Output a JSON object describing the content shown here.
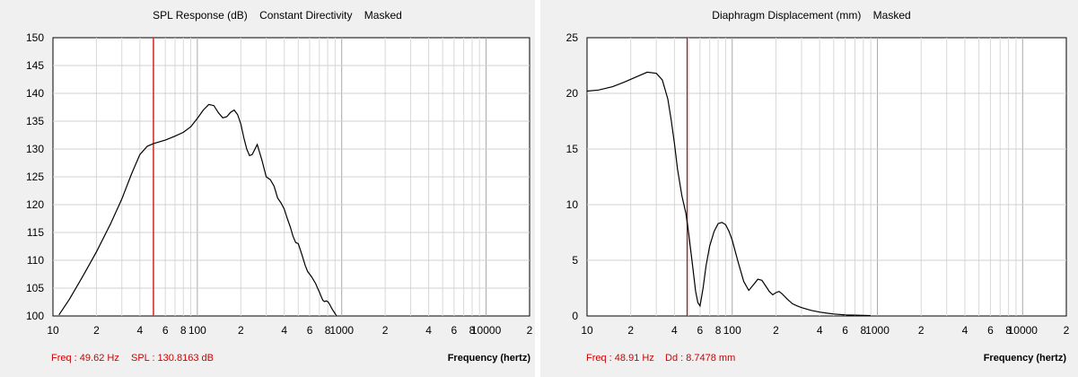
{
  "chart_data": [
    {
      "type": "line",
      "title": "SPL Response (dB)    Constant Directivity    Masked",
      "xlabel": "Frequency (hertz)",
      "ylabel": "",
      "x_scale": "log",
      "xlim": [
        10,
        20000
      ],
      "ylim": [
        100,
        150
      ],
      "x_tick_labels": [
        "10",
        "2",
        "4",
        "6",
        "8",
        "100",
        "2",
        "4",
        "6",
        "8",
        "1000",
        "2",
        "4",
        "6",
        "8",
        "10000",
        "2"
      ],
      "x_tick_values": [
        10,
        20,
        40,
        60,
        80,
        100,
        200,
        400,
        600,
        800,
        1000,
        2000,
        4000,
        6000,
        8000,
        10000,
        20000
      ],
      "y_ticks": [
        100,
        105,
        110,
        115,
        120,
        125,
        130,
        135,
        140,
        145,
        150
      ],
      "grid": true,
      "marker": {
        "x": 49.62,
        "color": "#cc0000"
      },
      "readout": {
        "freq": "Freq : 49.62 Hz",
        "value": "SPL : 130.8163 dB"
      },
      "series": [
        {
          "color": "#000000",
          "x": [
            11,
            13,
            16,
            20,
            25,
            30,
            35,
            40,
            45,
            50,
            60,
            70,
            80,
            90,
            100,
            110,
            120,
            130,
            140,
            150,
            160,
            170,
            180,
            190,
            200,
            210,
            220,
            230,
            240,
            260,
            280,
            300,
            320,
            340,
            360,
            380,
            400,
            420,
            440,
            460,
            480,
            500,
            520,
            540,
            560,
            580,
            600,
            620,
            640,
            660,
            680,
            700,
            720,
            740,
            760,
            780,
            800,
            820,
            840,
            860,
            880,
            900,
            920
          ],
          "values": [
            100.2,
            103,
            107,
            111.5,
            116.5,
            121,
            125.5,
            129,
            130.5,
            131,
            131.6,
            132.3,
            133,
            134,
            135.5,
            137,
            138,
            137.8,
            136.5,
            135.6,
            135.8,
            136.6,
            137,
            136.2,
            134.5,
            132,
            130,
            128.8,
            129,
            130.8,
            128,
            125,
            124.5,
            123.3,
            121.2,
            120.3,
            119.2,
            117.5,
            116,
            114.3,
            113.2,
            113,
            111.7,
            110.3,
            109,
            108,
            107.5,
            107,
            106.4,
            105.8,
            105,
            104.3,
            103.5,
            102.8,
            102.6,
            102.7,
            102.6,
            102.2,
            101.7,
            101.2,
            100.8,
            100.4,
            100
          ]
        }
      ]
    },
    {
      "type": "line",
      "title": "Diaphragm Displacement (mm)    Masked",
      "xlabel": "Frequency (hertz)",
      "ylabel": "",
      "x_scale": "log",
      "xlim": [
        10,
        20000
      ],
      "ylim": [
        0,
        25
      ],
      "x_tick_labels": [
        "10",
        "2",
        "4",
        "6",
        "8",
        "100",
        "2",
        "4",
        "6",
        "8",
        "1000",
        "2",
        "4",
        "6",
        "8",
        "10000",
        "2"
      ],
      "x_tick_values": [
        10,
        20,
        40,
        60,
        80,
        100,
        200,
        400,
        600,
        800,
        1000,
        2000,
        4000,
        6000,
        8000,
        10000,
        20000
      ],
      "y_ticks": [
        0,
        5,
        10,
        15,
        20,
        25
      ],
      "grid": true,
      "marker": {
        "x": 48.91,
        "color": "#cc0000"
      },
      "readout": {
        "freq": "Freq : 48.91 Hz",
        "value": "Dd : 8.7478 mm"
      },
      "series": [
        {
          "color": "#000000",
          "x": [
            10,
            12,
            15,
            18,
            22,
            26,
            30,
            33,
            36,
            38,
            40,
            42,
            45,
            48,
            50,
            53,
            56,
            58,
            60,
            63,
            66,
            70,
            75,
            80,
            85,
            90,
            95,
            100,
            110,
            120,
            130,
            140,
            150,
            160,
            170,
            180,
            190,
            200,
            210,
            220,
            240,
            260,
            280,
            300,
            350,
            400,
            450,
            500,
            600,
            700,
            800,
            900
          ],
          "values": [
            20.2,
            20.3,
            20.6,
            21,
            21.5,
            21.9,
            21.8,
            21.2,
            19.5,
            17.6,
            15.5,
            13.2,
            10.8,
            9.2,
            7.5,
            4.8,
            2.2,
            1.2,
            0.9,
            2.5,
            4.5,
            6.3,
            7.6,
            8.3,
            8.4,
            8.2,
            7.6,
            6.8,
            4.8,
            3.1,
            2.3,
            2.8,
            3.3,
            3.2,
            2.7,
            2.2,
            1.9,
            2.1,
            2.2,
            2,
            1.5,
            1.1,
            0.9,
            0.75,
            0.5,
            0.35,
            0.25,
            0.18,
            0.1,
            0.07,
            0.05,
            0.03
          ]
        }
      ]
    }
  ]
}
